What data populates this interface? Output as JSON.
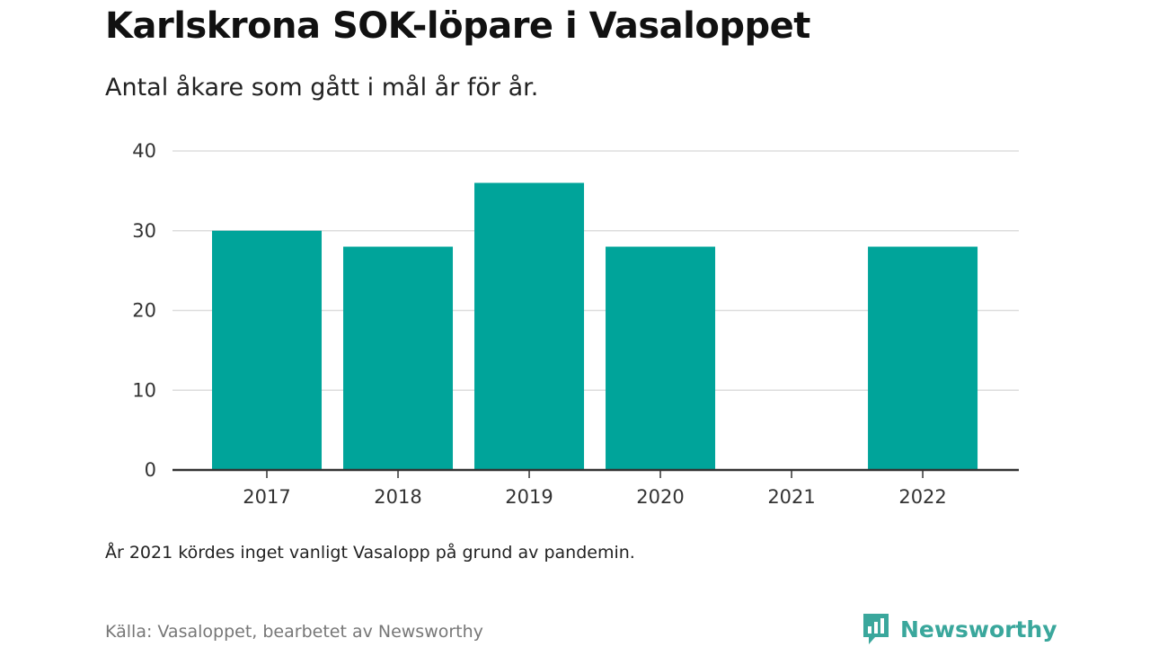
{
  "title": "Karlskrona SOK-löpare i Vasaloppet",
  "subtitle": "Antal åkare som gått i mål år för år.",
  "note": "År 2021 kördes inget vanligt Vasalopp på grund av pandemin.",
  "source": "Källa: Vasaloppet, bearbetet av Newsworthy",
  "brand": {
    "name": "Newsworthy",
    "icon": "newsworthy-logo-icon",
    "color": "#3aa79c"
  },
  "colors": {
    "bar": "#00a49a",
    "grid": "#dddddd",
    "axis": "#333333"
  },
  "chart_data": {
    "type": "bar",
    "categories": [
      "2017",
      "2018",
      "2019",
      "2020",
      "2021",
      "2022"
    ],
    "values": [
      30,
      28,
      36,
      28,
      0,
      28
    ],
    "yticks": [
      "0",
      "10",
      "20",
      "30",
      "40"
    ],
    "ylim": [
      0,
      40
    ],
    "xlabel": "",
    "ylabel": "",
    "grid": true,
    "legend": "none"
  }
}
